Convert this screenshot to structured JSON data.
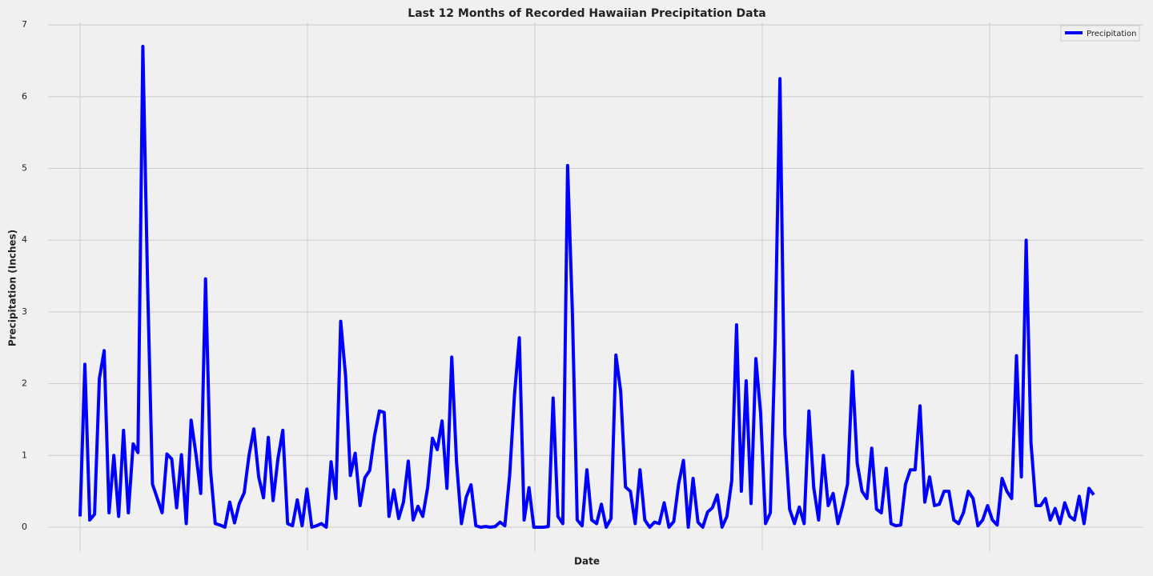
{
  "chart_data": {
    "type": "line",
    "title": "Last 12 Months of Recorded Hawaiian Precipitation Data",
    "x_label": "Date",
    "y_label": "Precipitation (Inches)",
    "series": [
      {
        "name": "Precipitation",
        "color": "#0000ff",
        "values": [
          0.15,
          2.27,
          0.1,
          0.18,
          2.07,
          2.46,
          0.2,
          1.0,
          0.15,
          1.35,
          0.2,
          1.16,
          1.04,
          6.7,
          3.35,
          0.6,
          0.4,
          0.2,
          1.02,
          0.95,
          0.27,
          1.01,
          0.05,
          1.49,
          1.02,
          0.47,
          3.46,
          0.81,
          0.05,
          0.03,
          0.0,
          0.35,
          0.06,
          0.33,
          0.48,
          1.0,
          1.37,
          0.7,
          0.41,
          1.25,
          0.37,
          0.96,
          1.35,
          0.05,
          0.02,
          0.38,
          0.02,
          0.53,
          0.0,
          0.02,
          0.05,
          0.0,
          0.91,
          0.4,
          2.87,
          2.11,
          0.72,
          1.03,
          0.3,
          0.69,
          0.79,
          1.27,
          1.62,
          1.6,
          0.15,
          0.52,
          0.12,
          0.35,
          0.92,
          0.1,
          0.29,
          0.15,
          0.55,
          1.24,
          1.08,
          1.48,
          0.54,
          2.37,
          0.9,
          0.05,
          0.42,
          0.59,
          0.02,
          0.0,
          0.01,
          0.0,
          0.01,
          0.07,
          0.02,
          0.72,
          1.85,
          2.64,
          0.1,
          0.55,
          0.0,
          0.0,
          0.0,
          0.01,
          1.8,
          0.15,
          0.05,
          5.04,
          2.98,
          0.1,
          0.02,
          0.8,
          0.1,
          0.05,
          0.32,
          0.0,
          0.12,
          2.4,
          1.89,
          0.56,
          0.5,
          0.05,
          0.8,
          0.1,
          0.0,
          0.07,
          0.05,
          0.34,
          0.0,
          0.08,
          0.6,
          0.93,
          0.0,
          0.68,
          0.07,
          0.0,
          0.21,
          0.27,
          0.45,
          0.0,
          0.15,
          0.65,
          2.82,
          0.5,
          2.04,
          0.33,
          2.35,
          1.58,
          0.05,
          0.2,
          2.6,
          6.25,
          1.3,
          0.25,
          0.05,
          0.28,
          0.05,
          1.62,
          0.55,
          0.1,
          1.0,
          0.3,
          0.47,
          0.05,
          0.3,
          0.6,
          2.17,
          0.89,
          0.5,
          0.4,
          1.1,
          0.25,
          0.2,
          0.82,
          0.05,
          0.02,
          0.03,
          0.6,
          0.8,
          0.8,
          1.69,
          0.35,
          0.7,
          0.3,
          0.32,
          0.5,
          0.5,
          0.1,
          0.05,
          0.2,
          0.5,
          0.4,
          0.02,
          0.1,
          0.3,
          0.1,
          0.03,
          0.68,
          0.5,
          0.4,
          2.39,
          0.7,
          4.0,
          1.18,
          0.3,
          0.3,
          0.4,
          0.1,
          0.26,
          0.05,
          0.34,
          0.15,
          0.1,
          0.43,
          0.05,
          0.54,
          0.45
        ]
      }
    ],
    "ylim": [
      -0.335,
      7.035
    ],
    "yticks": [
      0,
      1,
      2,
      3,
      4,
      5,
      6,
      7
    ],
    "grid": true,
    "legend": "upper right"
  }
}
